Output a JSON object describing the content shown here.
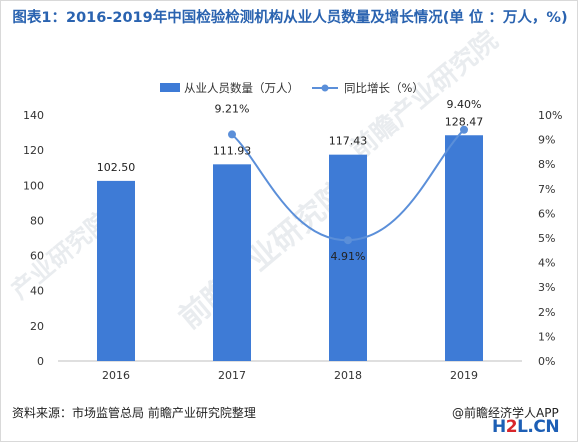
{
  "title": "图表1：2016-2019年中国检验检测机构从业人员数量及增长情况(单 位 ：万人，%)",
  "source": "资料来源：市场监管总局 前瞻产业研究院整理",
  "watermark_text": "@前瞻经济学人APP",
  "logo": {
    "part1": "H",
    "part2": "2",
    "part3": "L.CN"
  },
  "colors": {
    "bar": "#3e7bd6",
    "line": "#5b8fd9",
    "title": "#2a63b0"
  },
  "chart_data": {
    "type": "bar+line",
    "categories": [
      "2016",
      "2017",
      "2018",
      "2019"
    ],
    "series": [
      {
        "name": "从业人员数量（万人）",
        "type": "bar",
        "axis": "left",
        "values": [
          102.5,
          111.93,
          117.43,
          128.47
        ],
        "labels": [
          "102.50",
          "111.93",
          "117.43",
          "128.47"
        ]
      },
      {
        "name": "同比增长（%）",
        "type": "line",
        "axis": "right",
        "values": [
          null,
          9.21,
          4.91,
          9.4
        ],
        "labels": [
          "",
          "9.21%",
          "4.91%",
          "9.40%"
        ]
      }
    ],
    "left_axis": {
      "min": 0,
      "max": 140,
      "step": 20,
      "ticks": [
        "0",
        "20",
        "40",
        "60",
        "80",
        "100",
        "120",
        "140"
      ]
    },
    "right_axis": {
      "min": 0,
      "max": 10,
      "step": 1,
      "ticks": [
        "0%",
        "1%",
        "2%",
        "3%",
        "4%",
        "5%",
        "6%",
        "7%",
        "8%",
        "9%",
        "10%"
      ]
    },
    "legend_position": "top"
  }
}
